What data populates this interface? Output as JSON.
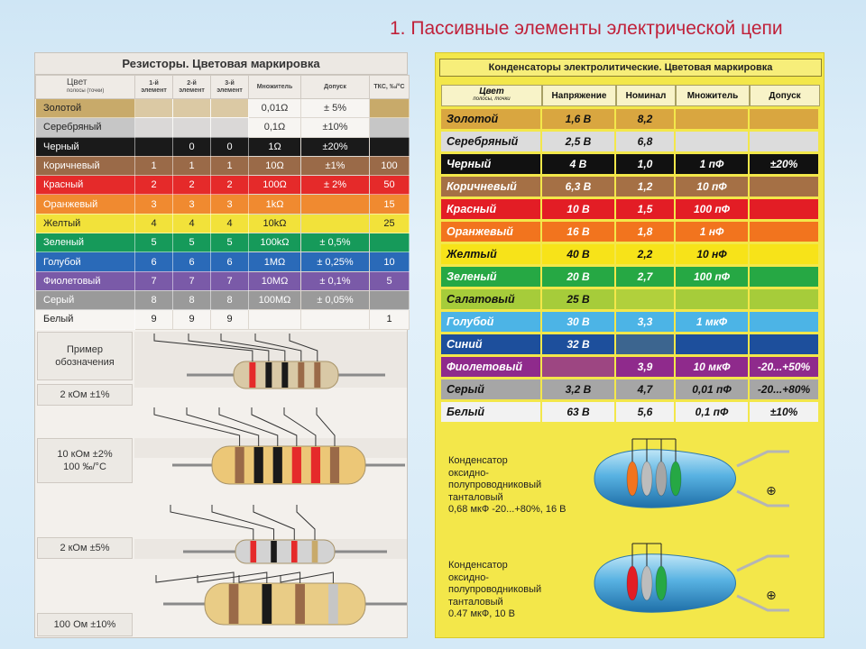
{
  "slide_title": "1. Пассивные элементы электрической цепи",
  "resistors": {
    "header": "Резисторы. Цветовая маркировка",
    "columns": [
      "Цвет",
      "1-й элемент",
      "2-й элемент",
      "3-й элемент",
      "Множитель",
      "Допуск",
      "ТКС, ‰/°С"
    ],
    "column_sub": "полосы (точки)",
    "rows": [
      {
        "name": "Золотой",
        "bg": "#c8aa6a",
        "fg": "#222",
        "d1": "",
        "d2": "",
        "d3": "",
        "mult": "0,01Ω",
        "tol": "± 5%",
        "tks": ""
      },
      {
        "name": "Серебряный",
        "bg": "#c6c6c6",
        "fg": "#222",
        "d1": "",
        "d2": "",
        "d3": "",
        "mult": "0,1Ω",
        "tol": "±10%",
        "tks": ""
      },
      {
        "name": "Черный",
        "bg": "#1a1a1a",
        "fg": "#fff",
        "d1": "",
        "d2": "0",
        "d3": "0",
        "mult": "1Ω",
        "tol": "±20%",
        "tks": ""
      },
      {
        "name": "Коричневый",
        "bg": "#9a6a48",
        "fg": "#fff",
        "d1": "1",
        "d2": "1",
        "d3": "1",
        "mult": "10Ω",
        "tol": "±1%",
        "tks": "100"
      },
      {
        "name": "Красный",
        "bg": "#e52a2a",
        "fg": "#fff",
        "d1": "2",
        "d2": "2",
        "d3": "2",
        "mult": "100Ω",
        "tol": "± 2%",
        "tks": "50"
      },
      {
        "name": "Оранжевый",
        "bg": "#f08a30",
        "fg": "#fff",
        "d1": "3",
        "d2": "3",
        "d3": "3",
        "mult": "1kΩ",
        "tol": "",
        "tks": "15"
      },
      {
        "name": "Желтый",
        "bg": "#f2e23a",
        "fg": "#222",
        "d1": "4",
        "d2": "4",
        "d3": "4",
        "mult": "10kΩ",
        "tol": "",
        "tks": "25"
      },
      {
        "name": "Зеленый",
        "bg": "#169a5a",
        "fg": "#fff",
        "d1": "5",
        "d2": "5",
        "d3": "5",
        "mult": "100kΩ",
        "tol": "± 0,5%",
        "tks": ""
      },
      {
        "name": "Голубой",
        "bg": "#2a6ab8",
        "fg": "#fff",
        "d1": "6",
        "d2": "6",
        "d3": "6",
        "mult": "1MΩ",
        "tol": "± 0,25%",
        "tks": "10"
      },
      {
        "name": "Фиолетовый",
        "bg": "#7a5aa8",
        "fg": "#fff",
        "d1": "7",
        "d2": "7",
        "d3": "7",
        "mult": "10MΩ",
        "tol": "± 0,1%",
        "tks": "5"
      },
      {
        "name": "Серый",
        "bg": "#9a9a9a",
        "fg": "#fff",
        "d1": "8",
        "d2": "8",
        "d3": "8",
        "mult": "100MΩ",
        "tol": "± 0,05%",
        "tks": ""
      },
      {
        "name": "Белый",
        "bg": "#f7f5f2",
        "fg": "#222",
        "d1": "9",
        "d2": "9",
        "d3": "9",
        "mult": "",
        "tol": "",
        "tks": "1"
      }
    ],
    "example_caption": "Пример обозначения",
    "examples": [
      {
        "label": "2 кОм ±1%",
        "bands": [
          "#e52a2a",
          "#1a1a1a",
          "#1a1a1a",
          "#9a6a48",
          "#9a6a48"
        ]
      },
      {
        "label": "10 кОм ±2%\n100 ‰/°С",
        "bands": [
          "#9a6a48",
          "#1a1a1a",
          "#1a1a1a",
          "#e52a2a",
          "#e52a2a",
          "#9a6a48"
        ]
      },
      {
        "label": "2 кОм ±5%",
        "bands": [
          "#e52a2a",
          "#1a1a1a",
          "#e52a2a",
          "#c8aa6a"
        ]
      },
      {
        "label": "100 Ом ±10%",
        "bands": [
          "#9a6a48",
          "#1a1a1a",
          "#9a6a48",
          "#c6c6c6"
        ]
      }
    ]
  },
  "capacitors": {
    "header": "Конденсаторы электролитические. Цветовая маркировка",
    "columns": [
      "Цвет",
      "Напряжение",
      "Номинал",
      "Множитель",
      "Допуск"
    ],
    "column_sub": "полосы, точки",
    "rows": [
      {
        "name": "Золотой",
        "bg": "#d9a640",
        "fg": "#111",
        "v": "1,6 В",
        "nom": "8,2",
        "mult": "",
        "tol": ""
      },
      {
        "name": "Серебряный",
        "bg": "#dcdcdc",
        "fg": "#111",
        "v": "2,5 В",
        "nom": "6,8",
        "mult": "",
        "tol": ""
      },
      {
        "name": "Черный",
        "bg": "#111111",
        "fg": "#fff",
        "v": "4 В",
        "nom": "1,0",
        "mult": "1 пФ",
        "tol": "±20%"
      },
      {
        "name": "Коричневый",
        "bg": "#a57045",
        "fg": "#fff",
        "v": "6,3 В",
        "nom": "1,2",
        "mult": "10 пФ",
        "tol": ""
      },
      {
        "name": "Красный",
        "bg": "#e31d25",
        "fg": "#fff",
        "v": "10 В",
        "nom": "1,5",
        "mult": "100 пФ",
        "tol": ""
      },
      {
        "name": "Оранжевый",
        "bg": "#f2741e",
        "fg": "#fff",
        "v": "16 В",
        "nom": "1,8",
        "mult": "1 нФ",
        "tol": ""
      },
      {
        "name": "Желтый",
        "bg": "#f7e319",
        "fg": "#111",
        "v": "40 В",
        "nom": "2,2",
        "mult": "10 нФ",
        "tol": ""
      },
      {
        "name": "Зеленый",
        "bg": "#26a844",
        "fg": "#fff",
        "v": "20 В",
        "nom": "2,7",
        "mult": "100 пФ",
        "tol": ""
      },
      {
        "name": "Салатовый",
        "bg": "#a6cc3a",
        "fg": "#111",
        "v": "25 В",
        "nom": "",
        "mult": "",
        "tol": ""
      },
      {
        "name": "Голубой",
        "bg": "#4cb4e6",
        "fg": "#fff",
        "v": "30 В",
        "nom": "3,3",
        "mult": "1 мкФ",
        "tol": ""
      },
      {
        "name": "Синий",
        "bg": "#1d4f9c",
        "fg": "#fff",
        "v": "32 В",
        "nom": "",
        "mult": "",
        "tol": ""
      },
      {
        "name": "Фиолетовый",
        "bg": "#8f2a8c",
        "fg": "#fff",
        "v": "",
        "nom": "3,9",
        "mult": "10 мкФ",
        "tol": "-20...+50%"
      },
      {
        "name": "Серый",
        "bg": "#a6a6a6",
        "fg": "#111",
        "v": "3,2 В",
        "nom": "4,7",
        "mult": "0,01 пФ",
        "tol": "-20...+80%"
      },
      {
        "name": "Белый",
        "bg": "#f2f2f2",
        "fg": "#111",
        "v": "63 В",
        "nom": "5,6",
        "mult": "0,1 пФ",
        "tol": "±10%"
      }
    ],
    "examples": [
      {
        "lines": [
          "Конденсатор",
          "оксидно-",
          "полупроводниковый",
          "танталовый",
          "0,68 мкФ -20...+80%, 16 В"
        ],
        "dots": [
          "#f2741e",
          "#bdbdbd",
          "#a6a6a6",
          "#26a844"
        ]
      },
      {
        "lines": [
          "Конденсатор",
          "оксидно-",
          "полупроводниковый",
          "танталовый",
          "0.47 мкФ, 10 В"
        ],
        "dots": [
          "#e31d25",
          "#bdbdbd",
          "#26a844"
        ]
      }
    ],
    "polarity_symbol": "⊕"
  }
}
